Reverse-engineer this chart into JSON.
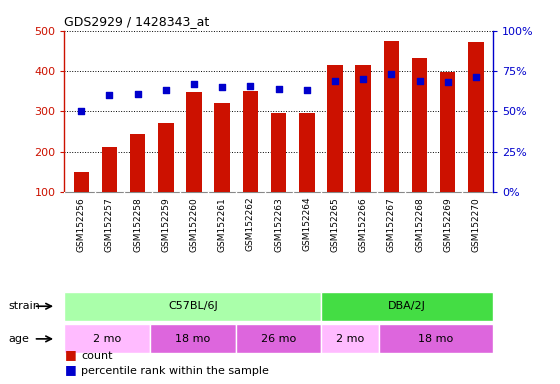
{
  "title": "GDS2929 / 1428343_at",
  "samples": [
    "GSM152256",
    "GSM152257",
    "GSM152258",
    "GSM152259",
    "GSM152260",
    "GSM152261",
    "GSM152262",
    "GSM152263",
    "GSM152264",
    "GSM152265",
    "GSM152266",
    "GSM152267",
    "GSM152268",
    "GSM152269",
    "GSM152270"
  ],
  "counts": [
    150,
    212,
    244,
    270,
    348,
    320,
    350,
    296,
    295,
    416,
    416,
    475,
    432,
    398,
    472
  ],
  "percentiles": [
    50,
    60,
    61,
    63,
    67,
    65,
    66,
    64,
    63,
    69,
    70,
    73,
    69,
    68,
    71
  ],
  "bar_color": "#cc1100",
  "dot_color": "#0000cc",
  "ylim_left": [
    100,
    500
  ],
  "ylim_right": [
    0,
    100
  ],
  "yticks_left": [
    100,
    200,
    300,
    400,
    500
  ],
  "yticks_right": [
    0,
    25,
    50,
    75,
    100
  ],
  "strain_groups": [
    {
      "label": "C57BL/6J",
      "start": 0,
      "end": 9,
      "color": "#aaffaa"
    },
    {
      "label": "DBA/2J",
      "start": 9,
      "end": 15,
      "color": "#44dd44"
    }
  ],
  "age_groups": [
    {
      "label": "2 mo",
      "start": 0,
      "end": 3,
      "color": "#ffbbff"
    },
    {
      "label": "18 mo",
      "start": 3,
      "end": 6,
      "color": "#dd66dd"
    },
    {
      "label": "26 mo",
      "start": 6,
      "end": 9,
      "color": "#dd66dd"
    },
    {
      "label": "2 mo",
      "start": 9,
      "end": 11,
      "color": "#ffbbff"
    },
    {
      "label": "18 mo",
      "start": 11,
      "end": 15,
      "color": "#dd66dd"
    }
  ],
  "legend_count_label": "count",
  "legend_pct_label": "percentile rank within the sample",
  "bar_color_legend": "#cc1100",
  "dot_color_legend": "#0000cc",
  "left_axis_color": "#cc1100",
  "right_axis_color": "#0000cc",
  "xtick_bg_color": "#cccccc",
  "grid_color": "#000000",
  "fig_bg": "#ffffff"
}
